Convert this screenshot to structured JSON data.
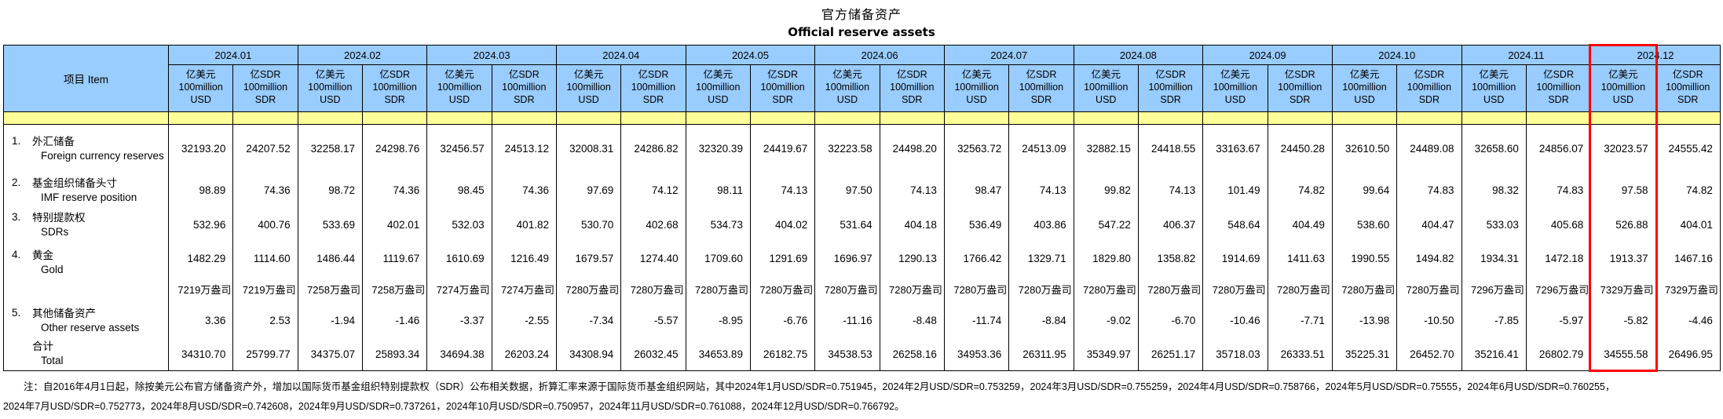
{
  "title": {
    "zh": "官方储备资产",
    "en": "Official reserve assets"
  },
  "table": {
    "item_header": "项目  Item",
    "months": [
      "2024.01",
      "2024.02",
      "2024.03",
      "2024.04",
      "2024.05",
      "2024.06",
      "2024.07",
      "2024.08",
      "2024.09",
      "2024.10",
      "2024.11",
      "2024.12"
    ],
    "unit_usd": [
      "亿美元",
      "100million",
      "USD"
    ],
    "unit_sdr": [
      "亿SDR",
      "100million",
      "SDR"
    ],
    "rows": [
      {
        "id": "foreign-currency-reserves",
        "no": "1.",
        "zh": "外汇储备",
        "en": "Foreign currency reserves",
        "usd": [
          "32193.20",
          "32258.17",
          "32456.57",
          "32008.31",
          "32320.39",
          "32223.58",
          "32563.72",
          "32882.15",
          "33163.67",
          "32610.50",
          "32658.60",
          "32023.57"
        ],
        "sdr": [
          "24207.52",
          "24298.76",
          "24513.12",
          "24286.82",
          "24419.67",
          "24498.20",
          "24513.09",
          "24418.55",
          "24450.28",
          "24489.08",
          "24856.07",
          "24555.42"
        ]
      },
      {
        "id": "imf-reserve-position",
        "no": "2.",
        "zh": "基金组织储备头寸",
        "en": "IMF reserve position",
        "usd": [
          "98.89",
          "98.72",
          "98.45",
          "97.69",
          "98.11",
          "97.50",
          "98.47",
          "99.82",
          "101.49",
          "99.64",
          "98.32",
          "97.58"
        ],
        "sdr": [
          "74.36",
          "74.36",
          "74.36",
          "74.12",
          "74.13",
          "74.13",
          "74.13",
          "74.13",
          "74.82",
          "74.83",
          "74.83",
          "74.82"
        ]
      },
      {
        "id": "sdrs",
        "no": "3.",
        "zh": "特别提款权",
        "en": "SDRs",
        "usd": [
          "532.96",
          "533.69",
          "532.03",
          "530.70",
          "534.73",
          "531.64",
          "536.49",
          "547.22",
          "548.64",
          "538.60",
          "533.03",
          "526.88"
        ],
        "sdr": [
          "400.76",
          "402.01",
          "401.82",
          "402.68",
          "404.02",
          "404.18",
          "403.86",
          "406.37",
          "404.49",
          "404.47",
          "405.68",
          "404.01"
        ]
      },
      {
        "id": "gold",
        "no": "4.",
        "zh": "黄金",
        "en": "Gold",
        "usd": [
          "1482.29",
          "1486.44",
          "1610.69",
          "1679.57",
          "1709.60",
          "1696.97",
          "1766.42",
          "1829.80",
          "1914.69",
          "1990.55",
          "1934.31",
          "1913.37"
        ],
        "sdr": [
          "1114.60",
          "1119.67",
          "1216.49",
          "1274.40",
          "1291.69",
          "1290.13",
          "1329.71",
          "1358.82",
          "1411.63",
          "1494.82",
          "1472.18",
          "1467.16"
        ],
        "ounces": [
          "7219万盎司",
          "7258万盎司",
          "7274万盎司",
          "7280万盎司",
          "7280万盎司",
          "7280万盎司",
          "7280万盎司",
          "7280万盎司",
          "7280万盎司",
          "7280万盎司",
          "7296万盎司",
          "7329万盎司"
        ]
      },
      {
        "id": "other-reserve-assets",
        "no": "5.",
        "zh": "其他储备资产",
        "en": "Other reserve assets",
        "usd": [
          "3.36",
          "-1.94",
          "-3.37",
          "-7.34",
          "-8.95",
          "-11.16",
          "-11.74",
          "-9.02",
          "-10.46",
          "-13.98",
          "-7.85",
          "-5.82"
        ],
        "sdr": [
          "2.53",
          "-1.46",
          "-2.55",
          "-5.57",
          "-6.76",
          "-8.48",
          "-8.84",
          "-6.70",
          "-7.71",
          "-10.50",
          "-5.97",
          "-4.46"
        ]
      },
      {
        "id": "total",
        "no": "",
        "zh": "合计",
        "en": "Total",
        "usd": [
          "34310.70",
          "34375.07",
          "34694.38",
          "34308.94",
          "34653.89",
          "34538.53",
          "34953.36",
          "35349.97",
          "35718.03",
          "35225.31",
          "35216.41",
          "34555.58"
        ],
        "sdr": [
          "25799.77",
          "25893.34",
          "26203.24",
          "26032.45",
          "26182.75",
          "26258.16",
          "26311.95",
          "26251.17",
          "26333.51",
          "26452.70",
          "26802.79",
          "26496.95"
        ]
      }
    ],
    "highlighted_column": "2024.12 亿美元 100million USD"
  },
  "footnote": {
    "line1": "注：自2016年4月1日起，除按美元公布官方储备资产外，增加以国际货币基金组织特别提款权（SDR）公布相关数据，折算汇率来源于国际货币基金组织网站，其中2024年1月USD/SDR=0.751945，2024年2月USD/SDR=0.753259，2024年3月USD/SDR=0.755259，2024年4月USD/SDR=0.758766，2024年5月USD/SDR=0.75555，2024年6月USD/SDR=0.760255，",
    "line2": "2024年7月USD/SDR=0.752773，2024年8月USD/SDR=0.742608，2024年9月USD/SDR=0.737261，2024年10月USD/SDR=0.750957，2024年11月USD/SDR=0.761088，2024年12月USD/SDR=0.766792。"
  },
  "colors": {
    "header_blue": "#99CCFF",
    "band_yellow": "#FFFF99",
    "highlight_red": "#FF0000",
    "border_black": "#000000"
  }
}
